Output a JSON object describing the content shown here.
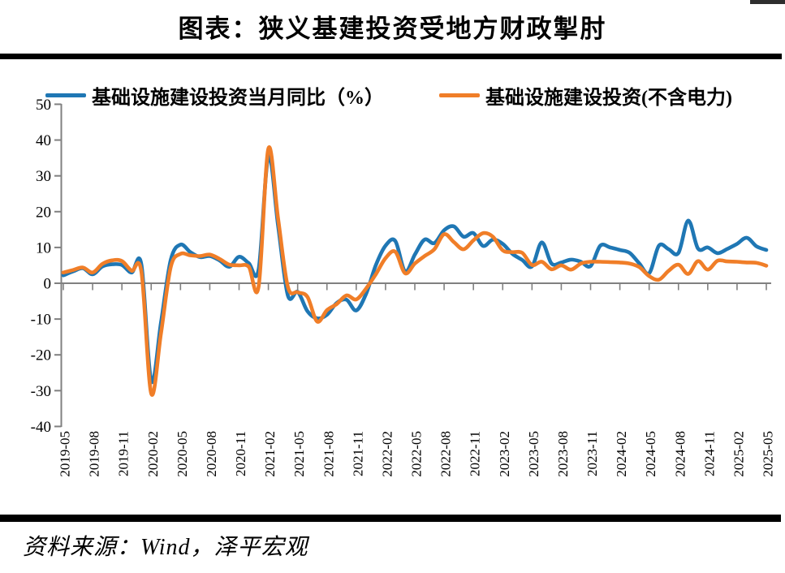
{
  "page": {
    "title": "图表：狭义基建投资受地方财政掣肘",
    "source": "资料来源：Wind，泽平宏观"
  },
  "chart_data": {
    "type": "line",
    "title": "图表：狭义基建投资受地方财政掣肘",
    "xlabel": "",
    "ylabel": "",
    "ylim": [
      -40,
      50
    ],
    "y_ticks": [
      50,
      40,
      30,
      20,
      10,
      0,
      -10,
      -20,
      -30,
      -40
    ],
    "x_tick_step": 3,
    "grid": false,
    "legend_position": "top",
    "axis_color": "#808080",
    "x": [
      "2019-05",
      "2019-06",
      "2019-07",
      "2019-08",
      "2019-09",
      "2019-10",
      "2019-11",
      "2019-12",
      "2020-01",
      "2020-02",
      "2020-03",
      "2020-04",
      "2020-05",
      "2020-06",
      "2020-07",
      "2020-08",
      "2020-09",
      "2020-10",
      "2020-11",
      "2020-12",
      "2021-01",
      "2021-02",
      "2021-03",
      "2021-04",
      "2021-05",
      "2021-06",
      "2021-07",
      "2021-08",
      "2021-09",
      "2021-10",
      "2021-11",
      "2021-12",
      "2022-01",
      "2022-02",
      "2022-03",
      "2022-04",
      "2022-05",
      "2022-06",
      "2022-07",
      "2022-08",
      "2022-09",
      "2022-10",
      "2022-11",
      "2022-12",
      "2023-01",
      "2023-02",
      "2023-03",
      "2023-04",
      "2023-05",
      "2023-06",
      "2023-07",
      "2023-08",
      "2023-09",
      "2023-10",
      "2023-11",
      "2023-12",
      "2024-01",
      "2024-02",
      "2024-03",
      "2024-04",
      "2024-05",
      "2024-06",
      "2024-07",
      "2024-08",
      "2024-09",
      "2024-10",
      "2024-11",
      "2024-12",
      "2025-01",
      "2025-02",
      "2025-03",
      "2025-04",
      "2025-05"
    ],
    "series": [
      {
        "name": "基础设施建设投资当月同比（%）",
        "color": "#1F77B4",
        "values": [
          2.2,
          3.3,
          4.2,
          2.5,
          4.7,
          5.3,
          5.1,
          3.0,
          5.2,
          -27.3,
          -11.0,
          6.5,
          10.8,
          8.7,
          7.3,
          7.6,
          6.4,
          4.6,
          7.4,
          5.6,
          3.9,
          35.5,
          16.0,
          -3.4,
          -2.4,
          -7.8,
          -9.8,
          -8.8,
          -5.5,
          -4.6,
          -7.6,
          -3.0,
          5.0,
          10.5,
          11.8,
          3.3,
          8.0,
          12.2,
          11.2,
          14.8,
          15.9,
          13.0,
          14.0,
          10.4,
          12.2,
          11.0,
          8.2,
          6.5,
          4.7,
          11.4,
          5.5,
          5.8,
          6.6,
          6.0,
          4.8,
          10.5,
          10.0,
          9.3,
          8.5,
          5.5,
          2.8,
          10.5,
          9.5,
          8.5,
          17.5,
          9.7,
          10.0,
          8.4,
          9.6,
          11.0,
          12.7,
          10.3,
          9.3
        ]
      },
      {
        "name": "基础设施建设投资(不含电力)",
        "color": "#F07E28",
        "values": [
          3.0,
          3.7,
          4.4,
          3.0,
          5.4,
          6.4,
          6.2,
          3.5,
          3.2,
          -30.8,
          -14.0,
          4.5,
          8.2,
          7.8,
          7.6,
          8.0,
          6.8,
          5.2,
          5.0,
          4.6,
          -0.9,
          37.6,
          18.0,
          -1.0,
          -2.5,
          -3.8,
          -10.7,
          -7.5,
          -5.8,
          -3.4,
          -4.5,
          -1.5,
          2.5,
          7.0,
          8.8,
          2.8,
          5.5,
          7.6,
          9.5,
          13.7,
          11.5,
          9.5,
          12.0,
          14.0,
          13.0,
          9.2,
          8.7,
          8.5,
          5.1,
          6.0,
          3.9,
          5.0,
          3.8,
          5.5,
          6.0,
          6.0,
          5.9,
          5.8,
          5.5,
          4.5,
          2.0,
          1.0,
          3.5,
          5.2,
          2.6,
          6.2,
          3.8,
          6.3,
          6.1,
          6.0,
          5.8,
          5.7,
          4.9
        ]
      }
    ]
  }
}
